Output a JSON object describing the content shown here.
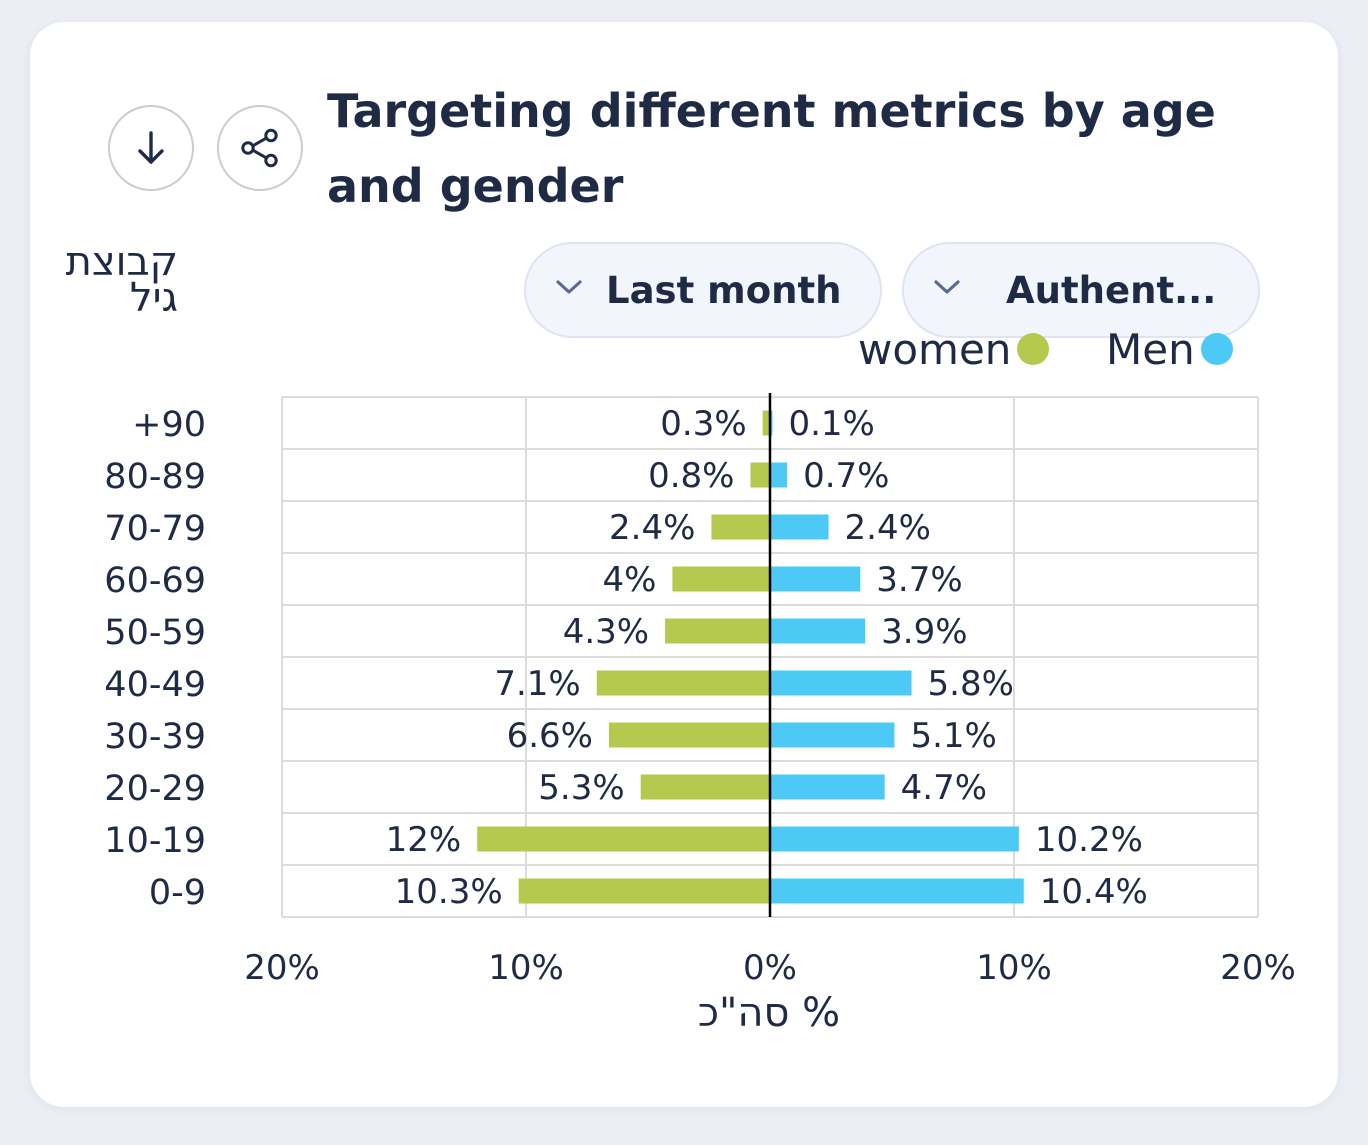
{
  "title": "Targeting different metrics by age and gender",
  "buttons": {
    "download_icon": "arrow-down-icon",
    "share_icon": "share-icon"
  },
  "filters": {
    "period": "Last month",
    "metric": "Authent..."
  },
  "colors": {
    "women": "#b5c94e",
    "men": "#4dc9f6",
    "grid": "#dcdcdc",
    "axis": "#000000"
  },
  "chart_data": {
    "type": "bar",
    "orientation": "horizontal",
    "ylabel": "קבוצת גיל",
    "xlabel": "% סה\"כ",
    "categories": [
      "+90",
      "80-89",
      "70-79",
      "60-69",
      "50-59",
      "40-49",
      "30-39",
      "20-29",
      "10-19",
      "0-9"
    ],
    "series": [
      {
        "name": "women",
        "values": [
          0.3,
          0.8,
          2.4,
          4,
          4.3,
          7.1,
          6.6,
          5.3,
          12,
          10.3
        ],
        "labels": [
          "0.3%",
          "0.8%",
          "2.4%",
          "4%",
          "4.3%",
          "7.1%",
          "6.6%",
          "5.3%",
          "12%",
          "10.3%"
        ]
      },
      {
        "name": "Men",
        "values": [
          0.1,
          0.7,
          2.4,
          3.7,
          3.9,
          5.8,
          5.1,
          4.7,
          10.2,
          10.4
        ],
        "labels": [
          "0.1%",
          "0.7%",
          "2.4%",
          "3.7%",
          "3.9%",
          "5.8%",
          "5.1%",
          "4.7%",
          "10.2%",
          "10.4%"
        ]
      }
    ],
    "xlim": [
      -20,
      20
    ],
    "xticks": [
      -20,
      -10,
      0,
      10,
      20
    ],
    "xtick_labels": [
      "20%",
      "10%",
      "0%",
      "10%",
      "20%"
    ],
    "legend_position": "top-right",
    "grid": true
  }
}
